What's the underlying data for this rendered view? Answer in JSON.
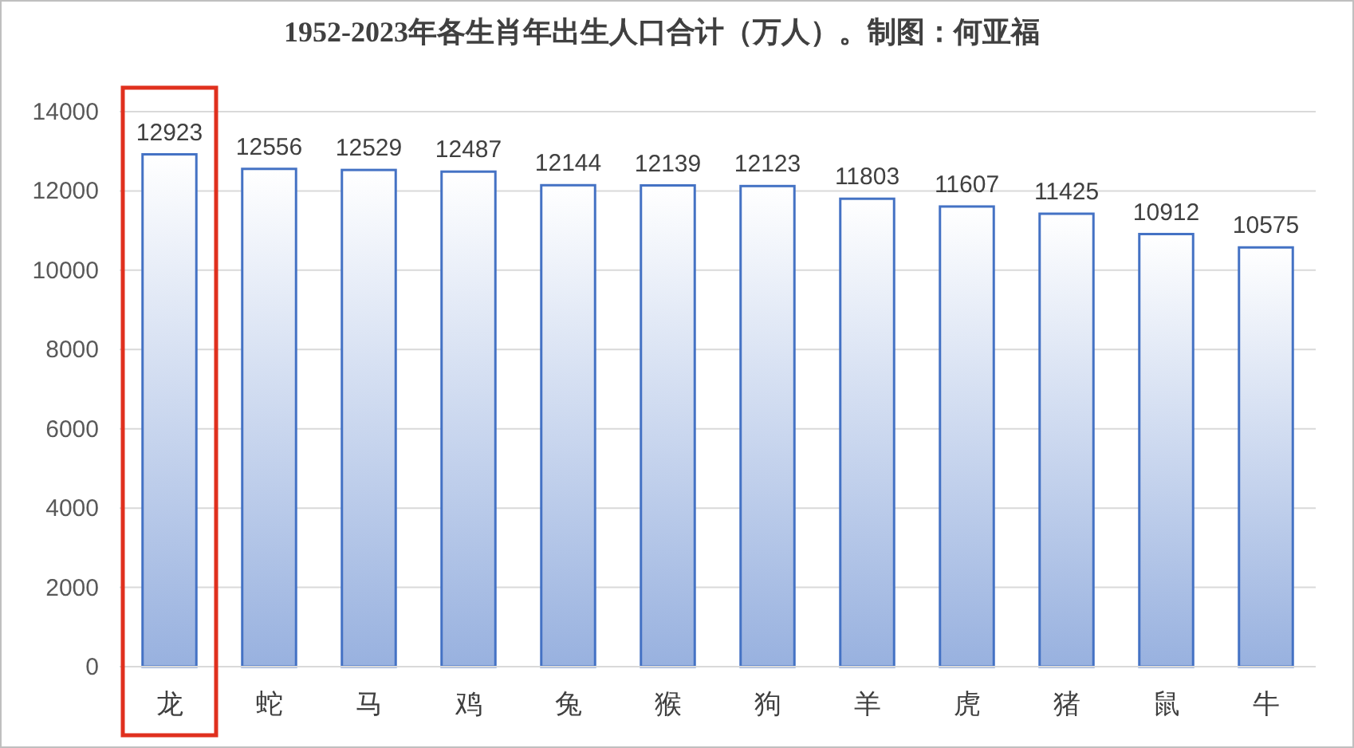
{
  "chart_data": {
    "type": "bar",
    "title": "1952-2023年各生肖年出生人口合计（万人）。制图：何亚福",
    "categories": [
      "龙",
      "蛇",
      "马",
      "鸡",
      "兔",
      "猴",
      "狗",
      "羊",
      "虎",
      "猪",
      "鼠",
      "牛"
    ],
    "values": [
      12923,
      12556,
      12529,
      12487,
      12144,
      12139,
      12123,
      11803,
      11607,
      11425,
      10912,
      10575
    ],
    "color": "#4472c4",
    "ylim": [
      0,
      14000
    ],
    "yticks": [
      0,
      2000,
      4000,
      6000,
      8000,
      10000,
      12000,
      14000
    ],
    "grid": "y",
    "data_labels": true
  }
}
